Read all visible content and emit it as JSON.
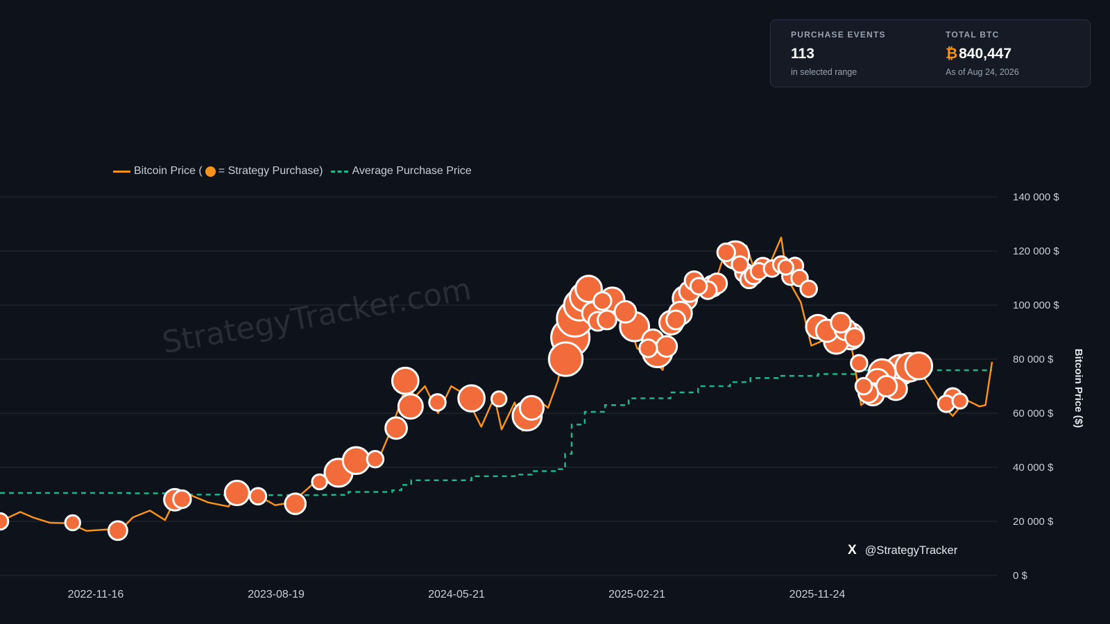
{
  "stats": {
    "purchase_events": {
      "label": "PURCHASE EVENTS",
      "value": "113",
      "sub": "in selected range"
    },
    "total_btc": {
      "label": "TOTAL BTC",
      "symbol": "₿",
      "value": "840,447",
      "sub": "As of Aug 24, 2026"
    }
  },
  "legend": {
    "price_prefix": "Bitcoin Price (",
    "price_suffix": " = Strategy Purchase)",
    "average": "Average Purchase Price"
  },
  "watermark": "StrategyTracker.com",
  "social": {
    "icon": "x-logo-icon",
    "glyph": "X",
    "handle": "@StrategyTracker"
  },
  "colors": {
    "price": "#f7931a",
    "purchase": "#f26b3a",
    "average": "#20b58a",
    "background": "#0e121b"
  },
  "chart_data": {
    "type": "line",
    "ylabel": "Bitcoin Price ($)",
    "ylim": [
      0,
      140000
    ],
    "y_ticks": [
      0,
      20000,
      40000,
      60000,
      80000,
      100000,
      120000,
      140000
    ],
    "y_tick_labels": [
      "0 $",
      "20 000 $",
      "40 000 $",
      "60 000 $",
      "80 000 $",
      "100 000 $",
      "120 000 $",
      "140 000 $"
    ],
    "x_tick_labels": [
      "2022-11-16",
      "2023-08-19",
      "2024-05-21",
      "2025-02-21",
      "2025-11-24"
    ],
    "xlim": [
      "2022-07-01",
      "2026-08-24"
    ],
    "grid": true,
    "legend_position": "top-left",
    "series": [
      {
        "name": "Bitcoin Price",
        "style": "solid",
        "points": [
          [
            "2022-07-01",
            20000
          ],
          [
            "2022-08-01",
            23500
          ],
          [
            "2022-08-20",
            21500
          ],
          [
            "2022-09-15",
            19500
          ],
          [
            "2022-10-15",
            19300
          ],
          [
            "2022-11-10",
            16500
          ],
          [
            "2022-12-10",
            17000
          ],
          [
            "2022-12-31",
            16600
          ],
          [
            "2023-01-20",
            21500
          ],
          [
            "2023-02-15",
            24000
          ],
          [
            "2023-03-10",
            20500
          ],
          [
            "2023-03-25",
            27800
          ],
          [
            "2023-04-15",
            30000
          ],
          [
            "2023-05-15",
            27000
          ],
          [
            "2023-06-15",
            25500
          ],
          [
            "2023-06-28",
            30500
          ],
          [
            "2023-08-01",
            29300
          ],
          [
            "2023-08-25",
            26000
          ],
          [
            "2023-09-20",
            27000
          ],
          [
            "2023-10-25",
            34500
          ],
          [
            "2023-11-20",
            37500
          ],
          [
            "2023-12-15",
            42500
          ],
          [
            "2024-01-10",
            46000
          ],
          [
            "2024-01-25",
            40000
          ],
          [
            "2024-02-15",
            52000
          ],
          [
            "2024-03-01",
            62000
          ],
          [
            "2024-03-14",
            72000
          ],
          [
            "2024-03-25",
            66000
          ],
          [
            "2024-04-10",
            70000
          ],
          [
            "2024-04-30",
            60000
          ],
          [
            "2024-05-20",
            70000
          ],
          [
            "2024-06-10",
            67000
          ],
          [
            "2024-07-05",
            55000
          ],
          [
            "2024-07-25",
            66000
          ],
          [
            "2024-08-05",
            54000
          ],
          [
            "2024-08-25",
            64000
          ],
          [
            "2024-09-06",
            53500
          ],
          [
            "2024-09-27",
            65500
          ],
          [
            "2024-10-15",
            62000
          ],
          [
            "2024-10-30",
            72000
          ],
          [
            "2024-11-12",
            88000
          ],
          [
            "2024-11-22",
            99000
          ],
          [
            "2024-12-17",
            106500
          ],
          [
            "2024-12-30",
            92500
          ],
          [
            "2025-01-20",
            106000
          ],
          [
            "2025-02-10",
            97000
          ],
          [
            "2025-02-28",
            84000
          ],
          [
            "2025-03-15",
            82000
          ],
          [
            "2025-04-08",
            76000
          ],
          [
            "2025-04-25",
            94000
          ],
          [
            "2025-05-22",
            111000
          ],
          [
            "2025-06-20",
            103000
          ],
          [
            "2025-07-14",
            121000
          ],
          [
            "2025-08-01",
            114000
          ],
          [
            "2025-08-14",
            122000
          ],
          [
            "2025-09-01",
            108500
          ],
          [
            "2025-09-20",
            116000
          ],
          [
            "2025-10-06",
            125000
          ],
          [
            "2025-10-15",
            110000
          ],
          [
            "2025-11-05",
            101000
          ],
          [
            "2025-11-21",
            85000
          ],
          [
            "2025-12-20",
            88000
          ],
          [
            "2026-01-14",
            96000
          ],
          [
            "2026-02-05",
            63000
          ],
          [
            "2026-02-25",
            67000
          ],
          [
            "2026-03-20",
            70000
          ],
          [
            "2026-04-20",
            78000
          ],
          [
            "2026-05-10",
            74000
          ],
          [
            "2026-06-05",
            64000
          ],
          [
            "2026-06-25",
            59000
          ],
          [
            "2026-07-15",
            65000
          ],
          [
            "2026-08-05",
            62500
          ],
          [
            "2026-08-14",
            63000
          ],
          [
            "2026-08-24",
            79000
          ]
        ]
      },
      {
        "name": "Average Purchase Price",
        "style": "dashed",
        "points": [
          [
            "2022-07-01",
            30500
          ],
          [
            "2023-01-15",
            30400
          ],
          [
            "2023-04-05",
            29900
          ],
          [
            "2023-06-01",
            29700
          ],
          [
            "2023-11-01",
            29800
          ],
          [
            "2023-12-15",
            30900
          ],
          [
            "2024-02-20",
            31500
          ],
          [
            "2024-03-05",
            33500
          ],
          [
            "2024-03-20",
            35200
          ],
          [
            "2024-06-20",
            36700
          ],
          [
            "2024-08-25",
            37300
          ],
          [
            "2024-09-20",
            38600
          ],
          [
            "2024-10-31",
            39300
          ],
          [
            "2024-11-10",
            45000
          ],
          [
            "2024-11-20",
            55800
          ],
          [
            "2024-12-10",
            60500
          ],
          [
            "2025-01-10",
            63000
          ],
          [
            "2025-02-15",
            65500
          ],
          [
            "2025-04-20",
            67700
          ],
          [
            "2025-06-01",
            70000
          ],
          [
            "2025-07-20",
            71500
          ],
          [
            "2025-08-20",
            73000
          ],
          [
            "2025-10-01",
            73800
          ],
          [
            "2025-12-01",
            74500
          ],
          [
            "2026-02-01",
            75900
          ],
          [
            "2026-08-24",
            75900
          ]
        ]
      },
      {
        "name": "Strategy Purchase",
        "style": "bubbles",
        "points": [
          [
            "2022-07-01",
            20000,
            0.3
          ],
          [
            "2022-10-20",
            19500,
            0.2
          ],
          [
            "2022-12-28",
            16600,
            0.5
          ],
          [
            "2023-03-25",
            28000,
            0.8
          ],
          [
            "2023-04-05",
            28200,
            0.4
          ],
          [
            "2023-06-28",
            30500,
            1.2
          ],
          [
            "2023-07-30",
            29300,
            0.3
          ],
          [
            "2023-09-25",
            26500,
            0.7
          ],
          [
            "2023-11-01",
            34600,
            0.2
          ],
          [
            "2023-11-30",
            38000,
            1.8
          ],
          [
            "2023-12-27",
            42500,
            1.6
          ],
          [
            "2024-01-25",
            43000,
            0.3
          ],
          [
            "2024-02-26",
            54500,
            0.8
          ],
          [
            "2024-03-11",
            72000,
            1.5
          ],
          [
            "2024-03-19",
            62500,
            1.2
          ],
          [
            "2024-04-29",
            64000,
            0.3
          ],
          [
            "2024-06-20",
            65500,
            1.5
          ],
          [
            "2024-08-01",
            65300,
            0.2
          ],
          [
            "2024-09-13",
            59000,
            2.0
          ],
          [
            "2024-09-20",
            62000,
            1.1
          ],
          [
            "2024-11-11",
            80000,
            3.0
          ],
          [
            "2024-11-18",
            88000,
            4.2
          ],
          [
            "2024-11-25",
            95000,
            3.6
          ],
          [
            "2024-12-02",
            100000,
            2.4
          ],
          [
            "2024-12-09",
            103000,
            1.9
          ],
          [
            "2024-12-16",
            106000,
            1.5
          ],
          [
            "2024-12-23",
            97000,
            0.9
          ],
          [
            "2024-12-30",
            94000,
            0.5
          ],
          [
            "2025-01-06",
            101500,
            0.4
          ],
          [
            "2025-01-13",
            94500,
            0.5
          ],
          [
            "2025-01-21",
            102000,
            1.2
          ],
          [
            "2025-02-10",
            97500,
            0.8
          ],
          [
            "2025-02-24",
            92000,
            2.0
          ],
          [
            "2025-03-17",
            84000,
            0.4
          ],
          [
            "2025-03-24",
            87000,
            0.8
          ],
          [
            "2025-03-31",
            82500,
            2.1
          ],
          [
            "2025-04-14",
            84700,
            0.7
          ],
          [
            "2025-04-21",
            93500,
            1.1
          ],
          [
            "2025-04-28",
            94500,
            0.5
          ],
          [
            "2025-05-05",
            97000,
            1.0
          ],
          [
            "2025-05-12",
            102500,
            1.2
          ],
          [
            "2025-05-19",
            105000,
            0.7
          ],
          [
            "2025-05-26",
            109000,
            0.5
          ],
          [
            "2025-06-02",
            107000,
            0.3
          ],
          [
            "2025-06-16",
            105500,
            0.4
          ],
          [
            "2025-06-23",
            107000,
            0.7
          ],
          [
            "2025-06-30",
            108000,
            0.6
          ],
          [
            "2025-07-14",
            119500,
            0.4
          ],
          [
            "2025-07-28",
            118500,
            1.7
          ],
          [
            "2025-08-04",
            115000,
            0.3
          ],
          [
            "2025-08-11",
            112000,
            0.5
          ],
          [
            "2025-08-18",
            109500,
            0.4
          ],
          [
            "2025-08-25",
            111000,
            0.4
          ],
          [
            "2025-09-02",
            112500,
            0.3
          ],
          [
            "2025-09-08",
            114000,
            0.5
          ],
          [
            "2025-09-22",
            113500,
            0.3
          ],
          [
            "2025-10-06",
            115000,
            0.3
          ],
          [
            "2025-10-13",
            114000,
            0.2
          ],
          [
            "2025-10-20",
            110500,
            0.3
          ],
          [
            "2025-10-27",
            114500,
            0.3
          ],
          [
            "2025-11-03",
            110000,
            0.3
          ],
          [
            "2025-11-17",
            106000,
            0.3
          ],
          [
            "2025-12-01",
            92000,
            1.1
          ],
          [
            "2025-12-15",
            90500,
            0.9
          ],
          [
            "2025-12-29",
            86500,
            1.2
          ],
          [
            "2026-01-05",
            93500,
            0.6
          ],
          [
            "2026-01-12",
            91000,
            0.8
          ],
          [
            "2026-01-20",
            88500,
            1.5
          ],
          [
            "2026-01-26",
            88000,
            0.5
          ],
          [
            "2026-02-02",
            78500,
            0.3
          ],
          [
            "2026-02-09",
            70000,
            0.3
          ],
          [
            "2026-02-16",
            67500,
            0.6
          ],
          [
            "2026-02-23",
            67000,
            0.9
          ],
          [
            "2026-03-02",
            72000,
            1.1
          ],
          [
            "2026-03-09",
            75000,
            1.6
          ],
          [
            "2026-03-16",
            70000,
            0.7
          ],
          [
            "2026-03-30",
            69000,
            0.9
          ],
          [
            "2026-04-06",
            76000,
            2.2
          ],
          [
            "2026-04-20",
            77000,
            1.9
          ],
          [
            "2026-05-04",
            77500,
            1.6
          ],
          [
            "2026-06-15",
            63500,
            0.3
          ],
          [
            "2026-06-25",
            66000,
            0.4
          ],
          [
            "2026-07-06",
            64500,
            0.2
          ]
        ]
      }
    ]
  }
}
